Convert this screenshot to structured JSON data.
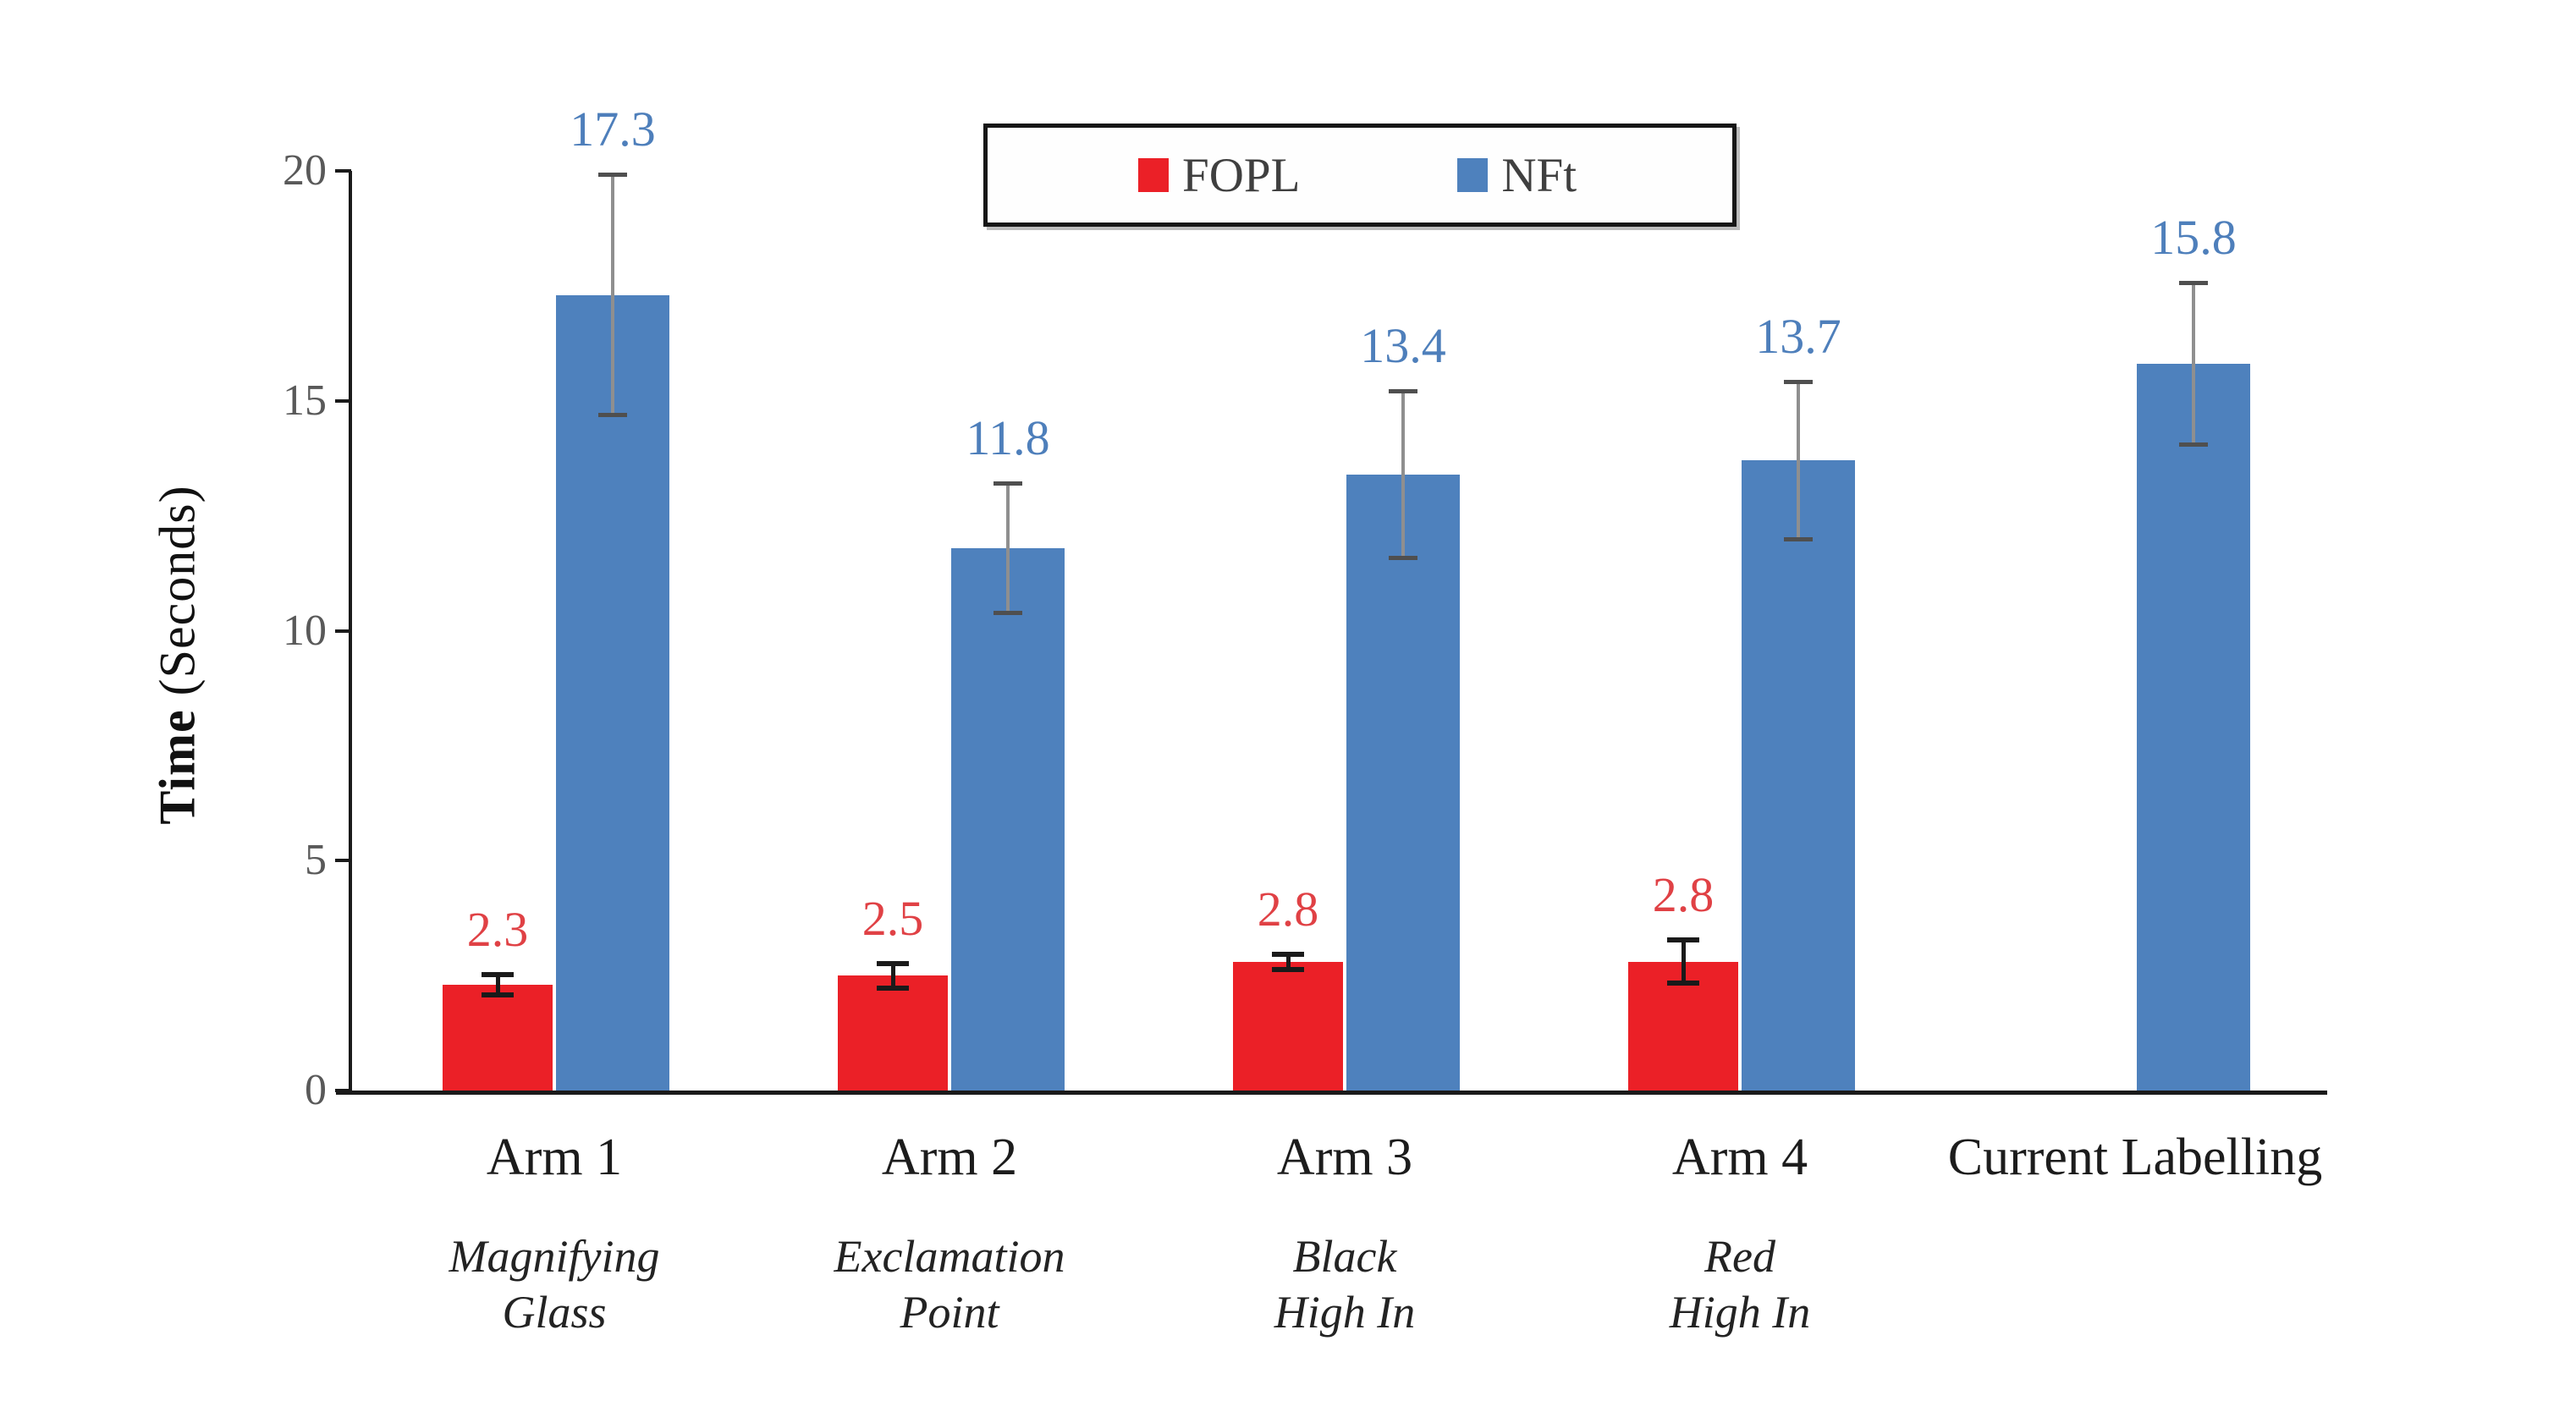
{
  "figure": {
    "description": "Grouped bar chart figure comparing label viewing time",
    "background": "#ffffff"
  },
  "chart_data": {
    "type": "bar",
    "title": "",
    "ylabel": "Time (Seconds)",
    "ylabel_bold": "Time",
    "ylabel_rest": " (Seconds)",
    "xlabel": "",
    "ylim": [
      0,
      20
    ],
    "yticks": [
      0,
      5,
      10,
      15,
      20
    ],
    "grid": false,
    "legend_position": "top-center",
    "error_bars": true,
    "colors": {
      "axis": "#1a1a1a",
      "tick_label": "#595959",
      "fopl_bar": "#eb2027",
      "fopl_label": "#e04145",
      "fopl_whisker": "#1a1a1a",
      "nft_bar": "#4e81bd",
      "nft_label": "#4e7fbb",
      "nft_whisker": "#8f8f8f",
      "nft_whisker_cap": "#4f4f4f"
    },
    "series": [
      {
        "name": "FOPL",
        "color": "#eb2027",
        "label_color": "#e04145",
        "whisker_color": "#1a1a1a",
        "whisker_cap_color": "#1a1a1a"
      },
      {
        "name": "NFt",
        "color": "#4e81bd",
        "label_color": "#4e7fbb",
        "whisker_color": "#8f8f8f",
        "whisker_cap_color": "#4f4f4f"
      }
    ],
    "categories": [
      {
        "label": "Arm 1",
        "sublabel_lines": [
          "Magnifying",
          "Glass"
        ],
        "values": {
          "FOPL": 2.3,
          "NFt": 17.3
        },
        "errors": {
          "FOPL": 0.2,
          "NFt": 2.6
        },
        "data_labels": {
          "FOPL": "2.3",
          "NFt": "17.3"
        }
      },
      {
        "label": "Arm 2",
        "sublabel_lines": [
          "Exclamation",
          "Point"
        ],
        "values": {
          "FOPL": 2.5,
          "NFt": 11.8
        },
        "errors": {
          "FOPL": 0.25,
          "NFt": 1.4
        },
        "data_labels": {
          "FOPL": "2.5",
          "NFt": "11.8"
        }
      },
      {
        "label": "Arm 3",
        "sublabel_lines": [
          "Black",
          "High In"
        ],
        "values": {
          "FOPL": 2.8,
          "NFt": 13.4
        },
        "errors": {
          "FOPL": 0.15,
          "NFt": 1.8
        },
        "data_labels": {
          "FOPL": "2.8",
          "NFt": "13.4"
        }
      },
      {
        "label": "Arm 4",
        "sublabel_lines": [
          "Red",
          "High In"
        ],
        "values": {
          "FOPL": 2.8,
          "NFt": 13.7
        },
        "errors": {
          "FOPL": 0.45,
          "NFt": 1.7
        },
        "data_labels": {
          "FOPL": "2.8",
          "NFt": "13.7"
        }
      },
      {
        "label": "Current Labelling",
        "sublabel_lines": [],
        "values": {
          "NFt": 15.8
        },
        "errors": {
          "NFt": 1.75
        },
        "data_labels": {
          "NFt": "15.8"
        }
      }
    ]
  }
}
